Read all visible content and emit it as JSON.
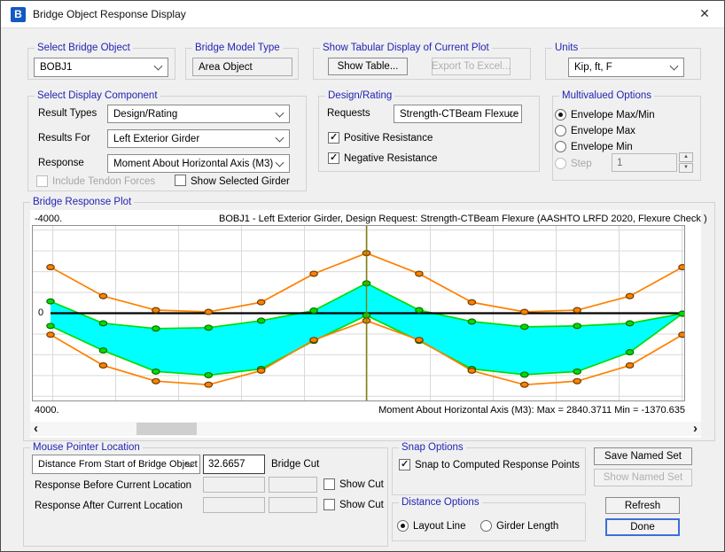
{
  "window": {
    "title": "Bridge Object Response Display",
    "icon_letter": "B",
    "close_glyph": "✕"
  },
  "select_bridge_object": {
    "label": "Select Bridge Object",
    "value": "BOBJ1"
  },
  "bridge_model_type": {
    "label": "Bridge Model Type",
    "value": "Area Object"
  },
  "tabular": {
    "label": "Show Tabular Display of Current Plot",
    "show_table_label": "Show Table...",
    "export_label": "Export To Excel..."
  },
  "units": {
    "label": "Units",
    "value": "Kip, ft, F"
  },
  "display_component": {
    "label": "Select Display Component",
    "result_types_label": "Result Types",
    "result_types_value": "Design/Rating",
    "results_for_label": "Results For",
    "results_for_value": "Left Exterior Girder",
    "response_label": "Response",
    "response_value": "Moment About Horizontal Axis  (M3)",
    "include_tendon_label": "Include Tendon Forces",
    "show_selected_girder_label": "Show Selected Girder"
  },
  "design_rating": {
    "label": "Design/Rating",
    "requests_label": "Requests",
    "requests_value": "Strength-CTBeam Flexure",
    "positive_label": "Positive Resistance",
    "negative_label": "Negative Resistance"
  },
  "multivalued": {
    "label": "Multivalued Options",
    "option_maxmin": "Envelope Max/Min",
    "option_max": "Envelope Max",
    "option_min": "Envelope Min",
    "step_label": "Step",
    "step_value": "1",
    "selected": "Envelope Max/Min"
  },
  "plot": {
    "group_label": "Bridge Response Plot",
    "title": "BOBJ1 - Left Exterior Girder,  Design Request: Strength-CTBeam Flexure  (AASHTO LRFD 2020, Flexure Check )",
    "y_top": "-4000.",
    "y_zero": "0",
    "y_bottom": "4000.",
    "stats": "Moment About Horizontal Axis  (M3):  Max = 2840.3711   Min = -1370.635"
  },
  "chart_data": {
    "type": "line",
    "title": "BOBJ1 - Left Exterior Girder,  Design Request: Strength-CTBeam Flexure  (AASHTO LRFD 2020, Flexure Check )",
    "ylabel": "Moment About Horizontal Axis (M3)",
    "y_tick_labels": [
      "-4000.",
      "0",
      "4000."
    ],
    "ylim": [
      -4000,
      4000
    ],
    "y_axis_inverted_display": true,
    "grid": true,
    "cursor_x": 32.6657,
    "max": 2840.3711,
    "min": -1370.635,
    "x_units": "ft",
    "y_units": "Kip-ft",
    "x": [
      0,
      5.4443,
      10.8886,
      16.3329,
      21.7772,
      27.2214,
      32.6657,
      38.11,
      43.5543,
      48.9986,
      54.4429,
      59.8871,
      65.3314
    ],
    "series": [
      {
        "name": "min-envelope",
        "color": "#00dc00",
        "marker_outline": "#0b6b00",
        "values": [
          -543,
          462,
          703,
          663,
          342,
          -121,
          -1370.635,
          -141,
          382,
          623,
          583,
          462,
          20
        ]
      },
      {
        "name": "max-envelope",
        "color": "#00dc00",
        "marker_outline": "#0b6b00",
        "values": [
          583,
          1708,
          2673,
          2840.3711,
          2553,
          1266,
          100,
          1266,
          2553,
          2815,
          2673,
          1789,
          20
        ]
      },
      {
        "name": "negative-resistance",
        "color": "#ff8000",
        "marker_outline": "#6b3c00",
        "values": [
          -2110,
          -784,
          -141,
          -60,
          -502,
          -1809,
          -2754,
          -1809,
          -502,
          -60,
          -141,
          -784,
          -2110
        ]
      },
      {
        "name": "positive-resistance",
        "color": "#ff8000",
        "marker_outline": "#6b3c00",
        "values": [
          985,
          2392,
          3115,
          3276,
          2633,
          1226,
          342,
          1226,
          2633,
          3276,
          3115,
          2392,
          985
        ]
      }
    ],
    "envelope_fill": {
      "between": [
        "min-envelope",
        "max-envelope"
      ],
      "color": "#00ffff"
    },
    "zero_line_color": "#000000",
    "cursor_color": "#7f7f00"
  },
  "mouse_pointer": {
    "label": "Mouse Pointer Location",
    "mode_value": "Distance From Start of Bridge Object",
    "cut_value": "32.6657",
    "cut_label": "Bridge Cut",
    "before_label": "Response Before Current Location",
    "after_label": "Response After Current Location",
    "show_cut_label": "Show Cut"
  },
  "snap": {
    "label": "Snap Options",
    "snap_cb_label": "Snap to Computed Response Points"
  },
  "distance": {
    "label": "Distance Options",
    "layout_line": "Layout Line",
    "girder_length": "Girder Length",
    "selected": "Layout Line"
  },
  "actions": {
    "save_named_set": "Save Named Set",
    "show_named_set": "Show Named Set",
    "refresh": "Refresh",
    "done": "Done"
  },
  "scrollbar": {
    "left_glyph": "‹",
    "right_glyph": "›"
  }
}
